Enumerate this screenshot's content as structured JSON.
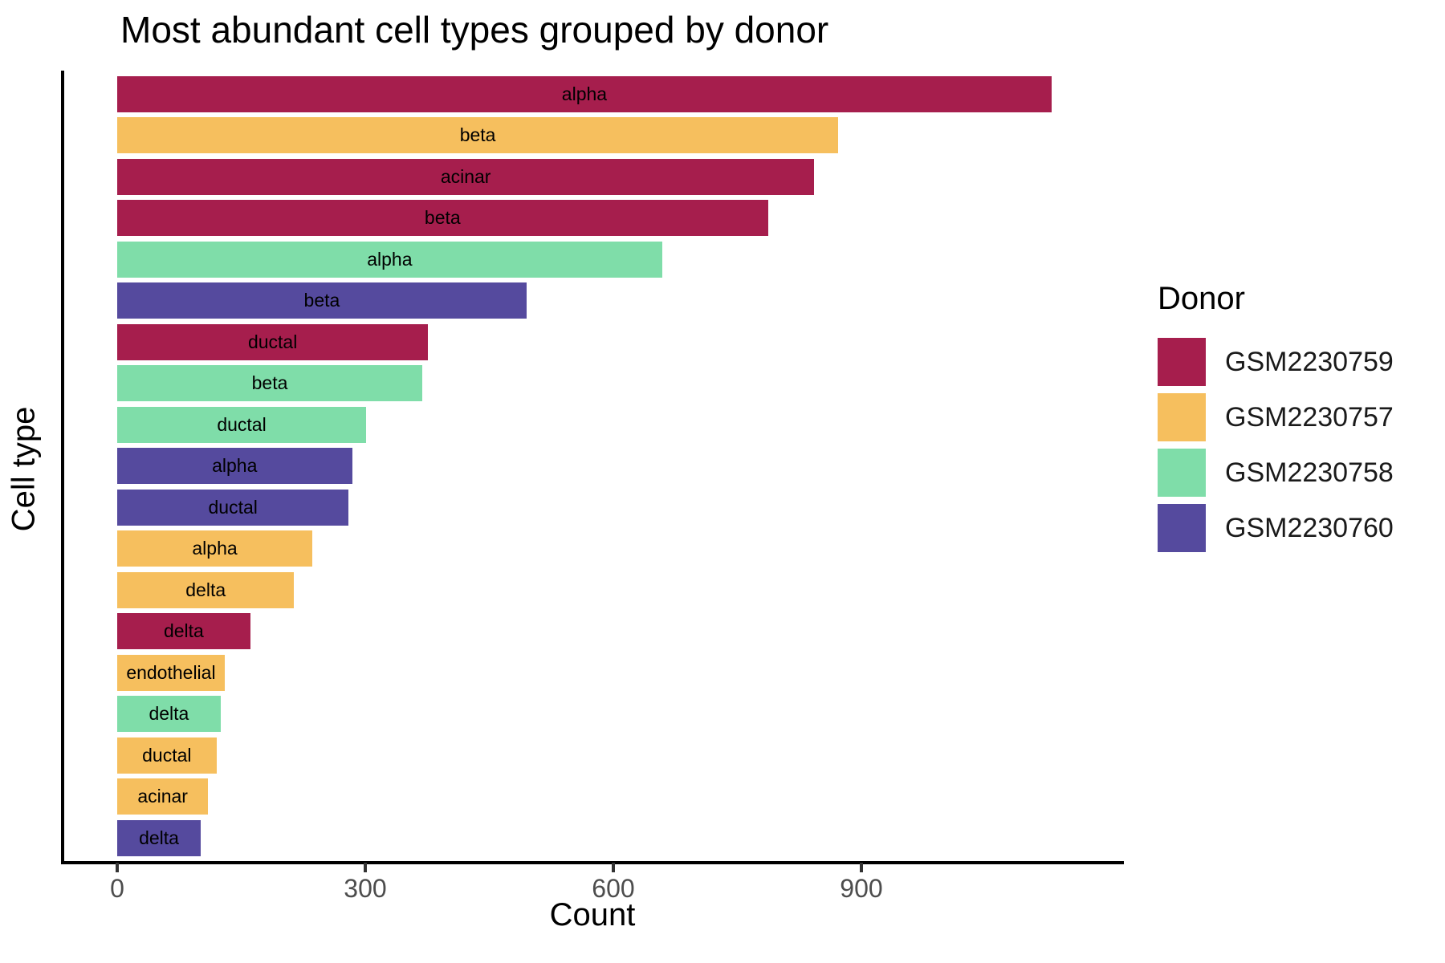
{
  "chart_data": {
    "type": "bar",
    "orientation": "horizontal",
    "title": "Most abundant cell types grouped by donor",
    "xlabel": "Count",
    "ylabel": "Cell type",
    "x_tick_labels": [
      "0",
      "300",
      "600",
      "900"
    ],
    "x_tick_values": [
      0,
      300,
      600,
      900
    ],
    "xlim": [
      0,
      1190
    ],
    "grid": false,
    "bar_label_position": "center",
    "legend": {
      "title": "Donor",
      "position": "right",
      "entries": [
        {
          "label": "GSM2230759",
          "color": "#A61E4D"
        },
        {
          "label": "GSM2230757",
          "color": "#F6BF5E"
        },
        {
          "label": "GSM2230758",
          "color": "#7FDDA9"
        },
        {
          "label": "GSM2230760",
          "color": "#554A9E"
        }
      ]
    },
    "bars": [
      {
        "cell_type": "alpha",
        "donor": "GSM2230759",
        "count": 1130
      },
      {
        "cell_type": "beta",
        "donor": "GSM2230757",
        "count": 872
      },
      {
        "cell_type": "acinar",
        "donor": "GSM2230759",
        "count": 843
      },
      {
        "cell_type": "beta",
        "donor": "GSM2230759",
        "count": 787
      },
      {
        "cell_type": "alpha",
        "donor": "GSM2230758",
        "count": 659
      },
      {
        "cell_type": "beta",
        "donor": "GSM2230760",
        "count": 495
      },
      {
        "cell_type": "ductal",
        "donor": "GSM2230759",
        "count": 376
      },
      {
        "cell_type": "beta",
        "donor": "GSM2230758",
        "count": 369
      },
      {
        "cell_type": "ductal",
        "donor": "GSM2230758",
        "count": 301
      },
      {
        "cell_type": "alpha",
        "donor": "GSM2230760",
        "count": 284
      },
      {
        "cell_type": "ductal",
        "donor": "GSM2230760",
        "count": 280
      },
      {
        "cell_type": "alpha",
        "donor": "GSM2230757",
        "count": 236
      },
      {
        "cell_type": "delta",
        "donor": "GSM2230757",
        "count": 214
      },
      {
        "cell_type": "delta",
        "donor": "GSM2230759",
        "count": 161
      },
      {
        "cell_type": "endothelial",
        "donor": "GSM2230757",
        "count": 130
      },
      {
        "cell_type": "delta",
        "donor": "GSM2230758",
        "count": 125
      },
      {
        "cell_type": "ductal",
        "donor": "GSM2230757",
        "count": 120
      },
      {
        "cell_type": "acinar",
        "donor": "GSM2230757",
        "count": 110
      },
      {
        "cell_type": "delta",
        "donor": "GSM2230760",
        "count": 101
      }
    ]
  }
}
